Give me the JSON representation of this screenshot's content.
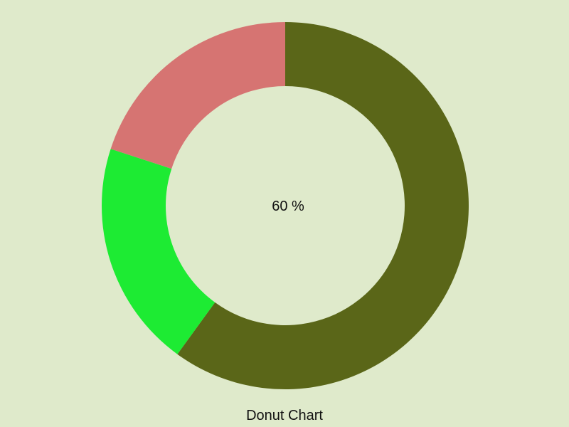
{
  "chart_data": {
    "type": "pie",
    "variant": "donut",
    "title": "Donut Chart",
    "center_label": "60 %",
    "slices": [
      {
        "value": 60,
        "color": "#5a6618"
      },
      {
        "value": 20,
        "color": "#1deb33"
      },
      {
        "value": 20,
        "color": "#d67472"
      }
    ],
    "start_angle_deg": 0,
    "direction": "clockwise"
  },
  "colors": {
    "background": "#dfeacb"
  }
}
